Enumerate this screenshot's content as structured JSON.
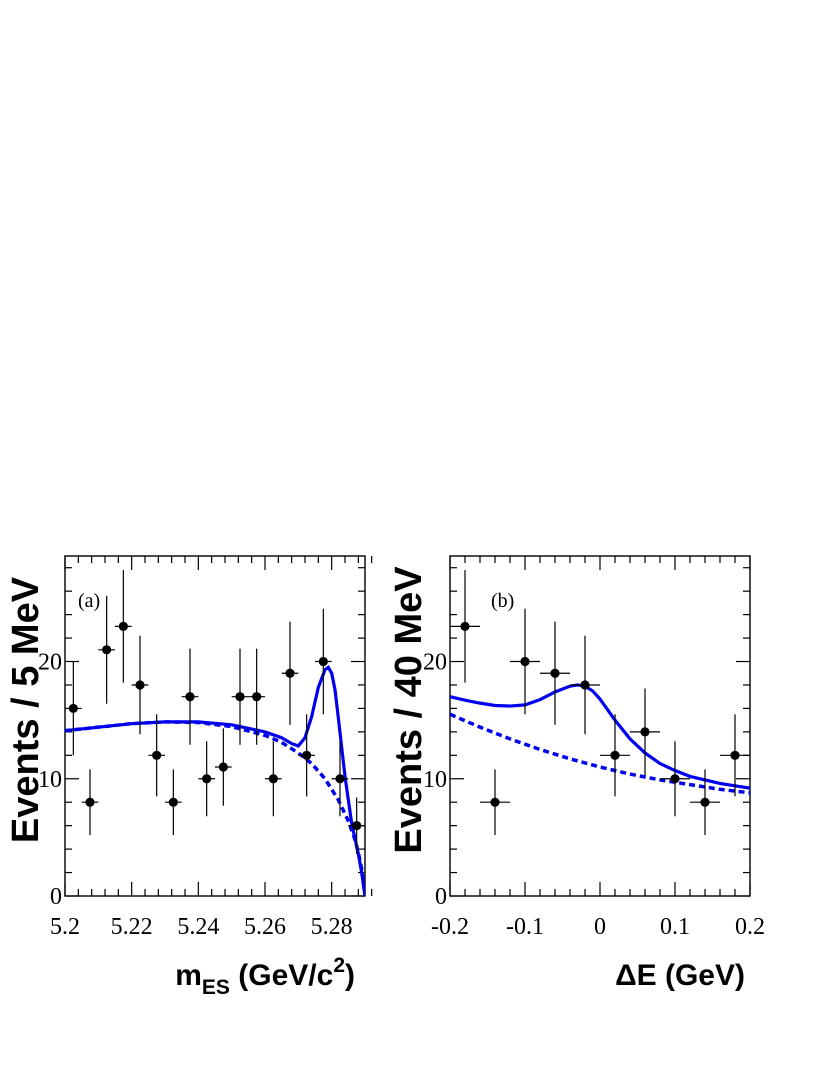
{
  "chart_data": [
    {
      "type": "scatter",
      "panel_label": "(a)",
      "xlabel_main": "m",
      "xlabel_sub": "ES",
      "xlabel_unit": " (GeV/c",
      "xlabel_sup": "2",
      "xlabel_close": ")",
      "ylabel": "Events / 5 MeV",
      "xlim": [
        5.2,
        5.29
      ],
      "ylim": [
        0,
        29
      ],
      "x_ticks": [
        5.2,
        5.22,
        5.24,
        5.26,
        5.28
      ],
      "x_tick_labels": [
        "5.2",
        "5.22",
        "5.24",
        "5.26",
        "5.28"
      ],
      "y_ticks": [
        0,
        10,
        20
      ],
      "y_tick_labels": [
        "0",
        "10",
        "20"
      ],
      "bin_half_width": 0.0025,
      "points": [
        {
          "x": 5.2025,
          "y": 16,
          "err": 4.0
        },
        {
          "x": 5.2075,
          "y": 8,
          "err": 2.8
        },
        {
          "x": 5.2125,
          "y": 21,
          "err": 4.6
        },
        {
          "x": 5.2175,
          "y": 23,
          "err": 4.8
        },
        {
          "x": 5.2225,
          "y": 18,
          "err": 4.2
        },
        {
          "x": 5.2275,
          "y": 12,
          "err": 3.5
        },
        {
          "x": 5.2325,
          "y": 8,
          "err": 2.8
        },
        {
          "x": 5.2375,
          "y": 17,
          "err": 4.1
        },
        {
          "x": 5.2425,
          "y": 10,
          "err": 3.2
        },
        {
          "x": 5.2475,
          "y": 11,
          "err": 3.3
        },
        {
          "x": 5.2525,
          "y": 17,
          "err": 4.1
        },
        {
          "x": 5.2575,
          "y": 17,
          "err": 4.1
        },
        {
          "x": 5.2625,
          "y": 10,
          "err": 3.2
        },
        {
          "x": 5.2675,
          "y": 19,
          "err": 4.4
        },
        {
          "x": 5.2725,
          "y": 12,
          "err": 3.5
        },
        {
          "x": 5.2775,
          "y": 20,
          "err": 4.5
        },
        {
          "x": 5.2825,
          "y": 10,
          "err": 3.2
        },
        {
          "x": 5.2875,
          "y": 6,
          "err": 2.4
        }
      ],
      "total_fit": {
        "x": [
          5.2,
          5.21,
          5.22,
          5.23,
          5.24,
          5.25,
          5.26,
          5.265,
          5.268,
          5.27,
          5.272,
          5.274,
          5.276,
          5.278,
          5.279,
          5.28,
          5.281,
          5.282,
          5.284,
          5.286,
          5.288,
          5.289,
          5.29
        ],
        "y": [
          14.1,
          14.4,
          14.7,
          14.85,
          14.85,
          14.6,
          14.0,
          13.5,
          13.0,
          12.8,
          13.5,
          15.3,
          17.8,
          19.3,
          19.5,
          19.0,
          17.6,
          15.2,
          10.2,
          6.2,
          3.6,
          2.0,
          0
        ]
      },
      "background_fit": {
        "x": [
          5.2,
          5.21,
          5.22,
          5.23,
          5.24,
          5.25,
          5.26,
          5.265,
          5.27,
          5.274,
          5.278,
          5.282,
          5.285,
          5.287,
          5.288,
          5.289,
          5.29
        ],
        "y": [
          14.1,
          14.4,
          14.7,
          14.85,
          14.8,
          14.45,
          13.7,
          13.1,
          12.2,
          11.3,
          10.0,
          8.2,
          6.4,
          4.8,
          3.7,
          2.3,
          0
        ]
      },
      "fit_color": "#0000ee"
    },
    {
      "type": "scatter",
      "panel_label": "(b)",
      "xlabel": "ΔE (GeV)",
      "ylabel": "Events / 40 MeV",
      "xlim": [
        -0.2,
        0.2
      ],
      "ylim": [
        0,
        29
      ],
      "x_ticks": [
        -0.2,
        -0.1,
        0,
        0.1,
        0.2
      ],
      "x_tick_labels": [
        "-0.2",
        "-0.1",
        "0",
        "0.1",
        "0.2"
      ],
      "y_ticks": [
        0,
        10,
        20
      ],
      "y_tick_labels": [
        "0",
        "10",
        "20"
      ],
      "bin_half_width": 0.02,
      "points": [
        {
          "x": -0.18,
          "y": 23,
          "err": 4.8
        },
        {
          "x": -0.14,
          "y": 8,
          "err": 2.8
        },
        {
          "x": -0.1,
          "y": 20,
          "err": 4.5
        },
        {
          "x": -0.06,
          "y": 19,
          "err": 4.4
        },
        {
          "x": -0.02,
          "y": 18,
          "err": 4.2
        },
        {
          "x": 0.02,
          "y": 12,
          "err": 3.5
        },
        {
          "x": 0.06,
          "y": 14,
          "err": 3.7
        },
        {
          "x": 0.1,
          "y": 10,
          "err": 3.2
        },
        {
          "x": 0.14,
          "y": 8,
          "err": 2.8
        },
        {
          "x": 0.18,
          "y": 12,
          "err": 3.5
        }
      ],
      "total_fit": {
        "x": [
          -0.2,
          -0.18,
          -0.16,
          -0.14,
          -0.12,
          -0.1,
          -0.08,
          -0.06,
          -0.04,
          -0.03,
          -0.02,
          -0.01,
          0,
          0.02,
          0.04,
          0.06,
          0.08,
          0.1,
          0.12,
          0.14,
          0.16,
          0.18,
          0.2
        ],
        "y": [
          17.0,
          16.7,
          16.45,
          16.25,
          16.2,
          16.3,
          16.75,
          17.4,
          17.9,
          18.0,
          17.9,
          17.5,
          16.8,
          15.0,
          13.4,
          12.2,
          11.3,
          10.7,
          10.2,
          9.9,
          9.6,
          9.4,
          9.2
        ]
      },
      "background_fit": {
        "x": [
          -0.2,
          -0.16,
          -0.12,
          -0.08,
          -0.04,
          0,
          0.04,
          0.08,
          0.12,
          0.16,
          0.2
        ],
        "y": [
          15.5,
          14.4,
          13.4,
          12.5,
          11.7,
          11.0,
          10.4,
          9.9,
          9.5,
          9.1,
          8.8
        ]
      },
      "fit_color": "#0000ee"
    }
  ]
}
